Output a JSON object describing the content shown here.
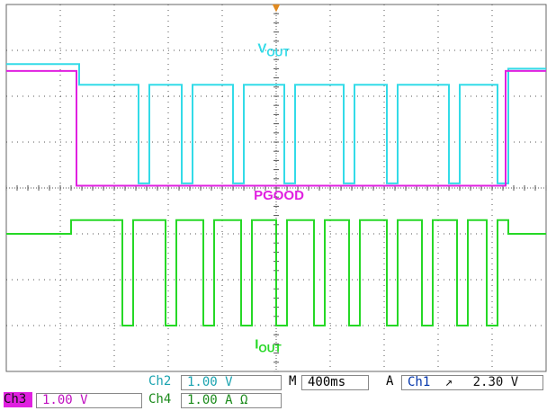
{
  "chart_data": {
    "type": "line",
    "title": "",
    "xlabel": "",
    "ylabel": "",
    "grid": true,
    "xlim": [
      0,
      10
    ],
    "ylim": [
      -4,
      4
    ],
    "markers": {
      "trigger": "▼"
    },
    "series": [
      {
        "name": "VOUT",
        "color": "#33dbe8",
        "label_main": "V",
        "label_sub": "OUT",
        "points": [
          [
            0,
            2.7
          ],
          [
            1.35,
            2.7
          ],
          [
            1.35,
            2.25
          ],
          [
            2.45,
            2.25
          ],
          [
            2.45,
            0.1
          ],
          [
            2.65,
            0.1
          ],
          [
            2.65,
            2.25
          ],
          [
            3.25,
            2.25
          ],
          [
            3.25,
            0.1
          ],
          [
            3.45,
            0.1
          ],
          [
            3.45,
            2.25
          ],
          [
            4.2,
            2.25
          ],
          [
            4.2,
            0.1
          ],
          [
            4.4,
            0.1
          ],
          [
            4.4,
            2.25
          ],
          [
            5.15,
            2.25
          ],
          [
            5.15,
            0.1
          ],
          [
            5.35,
            0.1
          ],
          [
            5.35,
            2.25
          ],
          [
            6.25,
            2.25
          ],
          [
            6.25,
            0.1
          ],
          [
            6.45,
            0.1
          ],
          [
            6.45,
            2.25
          ],
          [
            7.05,
            2.25
          ],
          [
            7.05,
            0.1
          ],
          [
            7.25,
            0.1
          ],
          [
            7.25,
            2.25
          ],
          [
            8.2,
            2.25
          ],
          [
            8.2,
            0.1
          ],
          [
            8.4,
            0.1
          ],
          [
            8.4,
            2.25
          ],
          [
            9.1,
            2.25
          ],
          [
            9.1,
            0.1
          ],
          [
            9.3,
            0.1
          ],
          [
            9.3,
            2.6
          ],
          [
            10,
            2.6
          ]
        ]
      },
      {
        "name": "PGOOD",
        "color": "#e020e0",
        "label_main": "PGOOD",
        "label_sub": "",
        "points": [
          [
            0,
            2.55
          ],
          [
            1.3,
            2.55
          ],
          [
            1.3,
            0.05
          ],
          [
            9.25,
            0.05
          ],
          [
            9.25,
            2.55
          ],
          [
            10,
            2.55
          ]
        ]
      },
      {
        "name": "IOUT",
        "color": "#26d826",
        "label_main": "I",
        "label_sub": "OUT",
        "points": [
          [
            0,
            -1.0
          ],
          [
            1.2,
            -1.0
          ],
          [
            1.2,
            -0.7
          ],
          [
            2.15,
            -0.7
          ],
          [
            2.15,
            -3.0
          ],
          [
            2.35,
            -3.0
          ],
          [
            2.35,
            -0.7
          ],
          [
            2.95,
            -0.7
          ],
          [
            2.95,
            -3.0
          ],
          [
            3.15,
            -3.0
          ],
          [
            3.15,
            -0.7
          ],
          [
            3.65,
            -0.7
          ],
          [
            3.65,
            -3.0
          ],
          [
            3.85,
            -3.0
          ],
          [
            3.85,
            -0.7
          ],
          [
            4.35,
            -0.7
          ],
          [
            4.35,
            -3.0
          ],
          [
            4.55,
            -3.0
          ],
          [
            4.55,
            -0.7
          ],
          [
            5.0,
            -0.7
          ],
          [
            5.0,
            -3.0
          ],
          [
            5.2,
            -3.0
          ],
          [
            5.2,
            -0.7
          ],
          [
            5.7,
            -0.7
          ],
          [
            5.7,
            -3.0
          ],
          [
            5.9,
            -3.0
          ],
          [
            5.9,
            -0.7
          ],
          [
            6.35,
            -0.7
          ],
          [
            6.35,
            -3.0
          ],
          [
            6.55,
            -3.0
          ],
          [
            6.55,
            -0.7
          ],
          [
            7.05,
            -0.7
          ],
          [
            7.05,
            -3.0
          ],
          [
            7.25,
            -3.0
          ],
          [
            7.25,
            -0.7
          ],
          [
            7.7,
            -0.7
          ],
          [
            7.7,
            -3.0
          ],
          [
            7.9,
            -3.0
          ],
          [
            7.9,
            -0.7
          ],
          [
            8.35,
            -0.7
          ],
          [
            8.35,
            -3.0
          ],
          [
            8.55,
            -3.0
          ],
          [
            8.55,
            -0.7
          ],
          [
            8.9,
            -0.7
          ],
          [
            8.9,
            -3.0
          ],
          [
            9.1,
            -3.0
          ],
          [
            9.1,
            -0.7
          ],
          [
            9.3,
            -0.7
          ],
          [
            9.3,
            -1.0
          ],
          [
            10,
            -1.0
          ]
        ]
      }
    ]
  },
  "status": {
    "ch2_label": "Ch2",
    "ch2_scale": "1.00 V",
    "timebase_label": "M",
    "timebase_value": "400ms",
    "trigger_mode": "A",
    "trigger_source": "Ch1",
    "trigger_slope": "↗",
    "trigger_level": "2.30 V",
    "ch3_label": "Ch3",
    "ch3_scale": "1.00 V",
    "ch4_label": "Ch4",
    "ch4_scale": "1.00 A Ω"
  },
  "colors": {
    "grid": "#555555",
    "border": "#666666",
    "ch3_tag_bg": "#e020e0",
    "ch2_color": "#1aa3b0",
    "ch4_color": "#1a8a1a"
  }
}
